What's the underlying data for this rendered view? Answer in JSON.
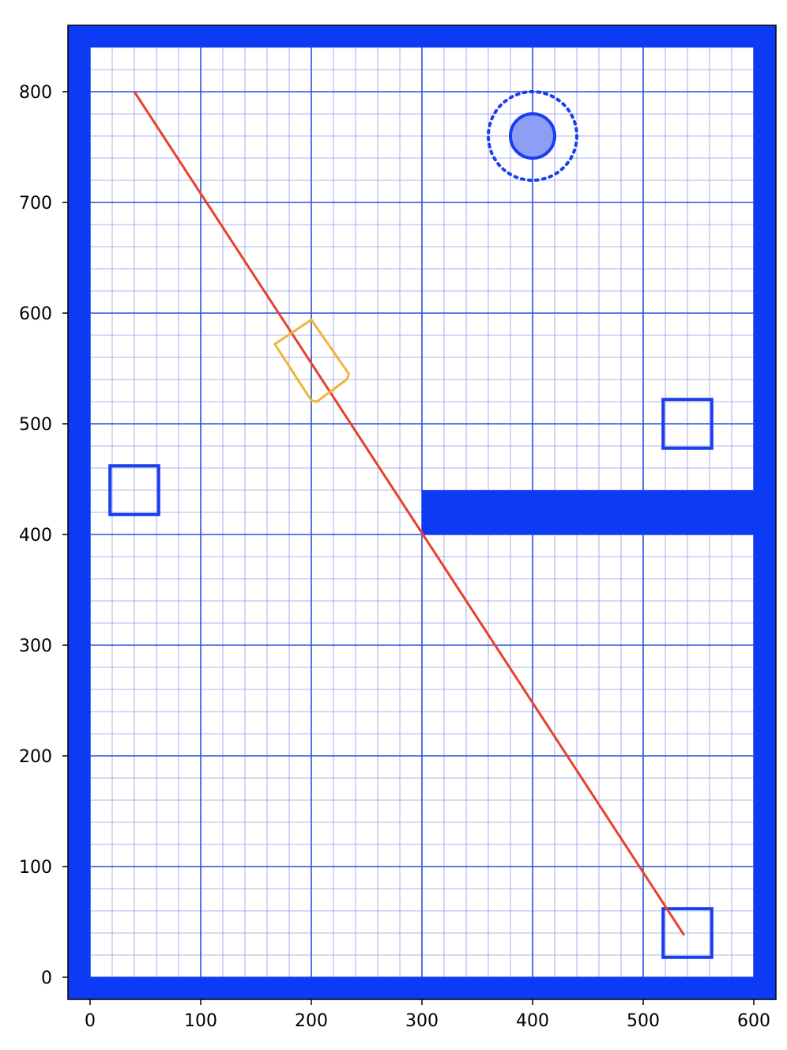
{
  "chart_data": {
    "type": "scatter",
    "title": "",
    "xlabel": "",
    "ylabel": "",
    "xlim": [
      -20,
      620
    ],
    "ylim": [
      -20,
      860
    ],
    "grid": {
      "major_step": 100,
      "minor_step": 20,
      "major_color": "#2f4fdc",
      "minor_color": "#8f9ae8"
    },
    "x_ticks": [
      0,
      100,
      200,
      300,
      400,
      500,
      600
    ],
    "x_tick_labels": [
      "0",
      "100",
      "200",
      "300",
      "400",
      "500",
      "600"
    ],
    "y_ticks": [
      0,
      100,
      200,
      300,
      400,
      500,
      600,
      700,
      800
    ],
    "y_tick_labels": [
      "0",
      "100",
      "200",
      "300",
      "400",
      "500",
      "600",
      "700",
      "800"
    ],
    "walls": [
      {
        "name": "wall-left",
        "x0": -20,
        "x1": 0,
        "y0": -20,
        "y1": 860
      },
      {
        "name": "wall-right",
        "x0": 600,
        "x1": 620,
        "y0": -20,
        "y1": 860
      },
      {
        "name": "wall-bottom",
        "x0": -20,
        "x1": 620,
        "y0": -20,
        "y1": 0
      },
      {
        "name": "wall-top",
        "x0": -20,
        "x1": 620,
        "y0": 840,
        "y1": 860
      },
      {
        "name": "wall-divider",
        "x0": 300,
        "x1": 620,
        "y0": 400,
        "y1": 440
      }
    ],
    "wall_color": "#0d3af5",
    "squares": [
      {
        "name": "square-left",
        "x0": 18,
        "x1": 62,
        "y0": 418,
        "y1": 462
      },
      {
        "name": "square-right-mid",
        "x0": 518,
        "x1": 562,
        "y0": 478,
        "y1": 522
      },
      {
        "name": "square-bottom-right",
        "x0": 518,
        "x1": 562,
        "y0": 18,
        "y1": 62
      }
    ],
    "square_color": "#1a3ef0",
    "goal": {
      "cx": 400,
      "cy": 760,
      "r": 20,
      "outer_r": 40,
      "fill": "#8e9ef5",
      "stroke": "#1a3ef0"
    },
    "path": {
      "x0": 40,
      "y0": 800,
      "x1": 537,
      "y1": 38,
      "color": "#e8412a"
    },
    "robot_polygon": {
      "points": [
        [
          200,
          594
        ],
        [
          234,
          545
        ],
        [
          232,
          540
        ],
        [
          205,
          520
        ],
        [
          200,
          521
        ],
        [
          167,
          572
        ]
      ],
      "color": "#f0b440"
    }
  }
}
